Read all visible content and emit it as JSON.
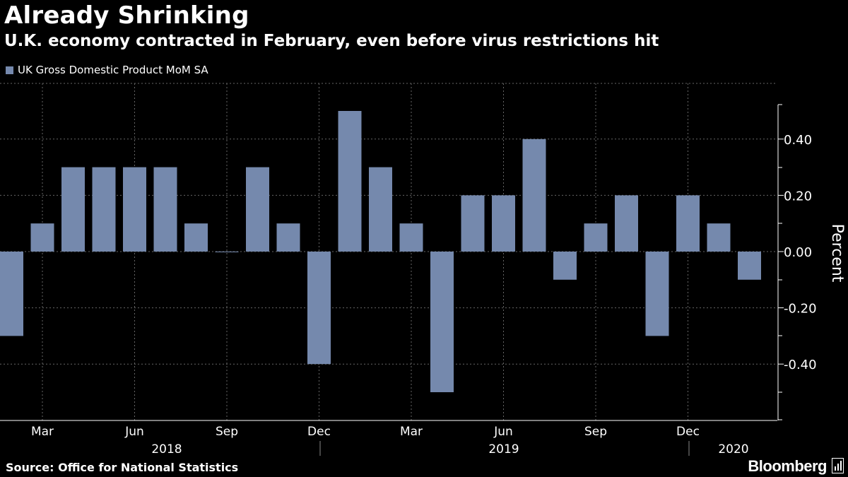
{
  "title": "Already Shrinking",
  "subtitle": "U.K. economy contracted in February, even before virus restrictions hit",
  "source": "Source: Office for National Statistics",
  "brand": "Bloomberg",
  "colors": {
    "bar": "#7589ad",
    "background": "#000000",
    "grid": "#666666",
    "text": "#ffffff"
  },
  "chart_data": {
    "type": "bar",
    "title": "Already Shrinking",
    "subtitle": "U.K. economy contracted in February, even before virus restrictions hit",
    "ylabel": "Percent",
    "xlabel": "",
    "ylim": [
      -0.6,
      0.6
    ],
    "yticks": [
      0.4,
      0.2,
      0.0,
      -0.2,
      -0.4
    ],
    "ytick_labels": [
      "0.40",
      "0.20",
      "0.00",
      "-0.20",
      "-0.40"
    ],
    "grid": true,
    "legend_position": "top-left",
    "categories": [
      "2018-02",
      "2018-03",
      "2018-04",
      "2018-05",
      "2018-06",
      "2018-07",
      "2018-08",
      "2018-09",
      "2018-10",
      "2018-11",
      "2018-12",
      "2019-01",
      "2019-02",
      "2019-03",
      "2019-04",
      "2019-05",
      "2019-06",
      "2019-07",
      "2019-08",
      "2019-09",
      "2019-10",
      "2019-11",
      "2019-12",
      "2020-01",
      "2020-02"
    ],
    "series": [
      {
        "name": "UK Gross Domestic Product MoM SA",
        "values": [
          -0.3,
          0.1,
          0.3,
          0.3,
          0.3,
          0.3,
          0.1,
          0.0,
          0.3,
          0.1,
          -0.4,
          0.5,
          0.3,
          0.1,
          -0.5,
          0.2,
          0.2,
          0.4,
          -0.1,
          0.1,
          0.2,
          -0.3,
          0.2,
          0.1,
          -0.1
        ]
      }
    ],
    "x_month_ticks": [
      {
        "label": "Mar",
        "category": "2018-03"
      },
      {
        "label": "Jun",
        "category": "2018-06"
      },
      {
        "label": "Sep",
        "category": "2018-09"
      },
      {
        "label": "Dec",
        "category": "2018-12"
      },
      {
        "label": "Mar",
        "category": "2019-03"
      },
      {
        "label": "Jun",
        "category": "2019-06"
      },
      {
        "label": "Sep",
        "category": "2019-09"
      },
      {
        "label": "Dec",
        "category": "2019-12"
      }
    ],
    "x_year_labels": [
      "2018",
      "2019",
      "2020"
    ]
  }
}
